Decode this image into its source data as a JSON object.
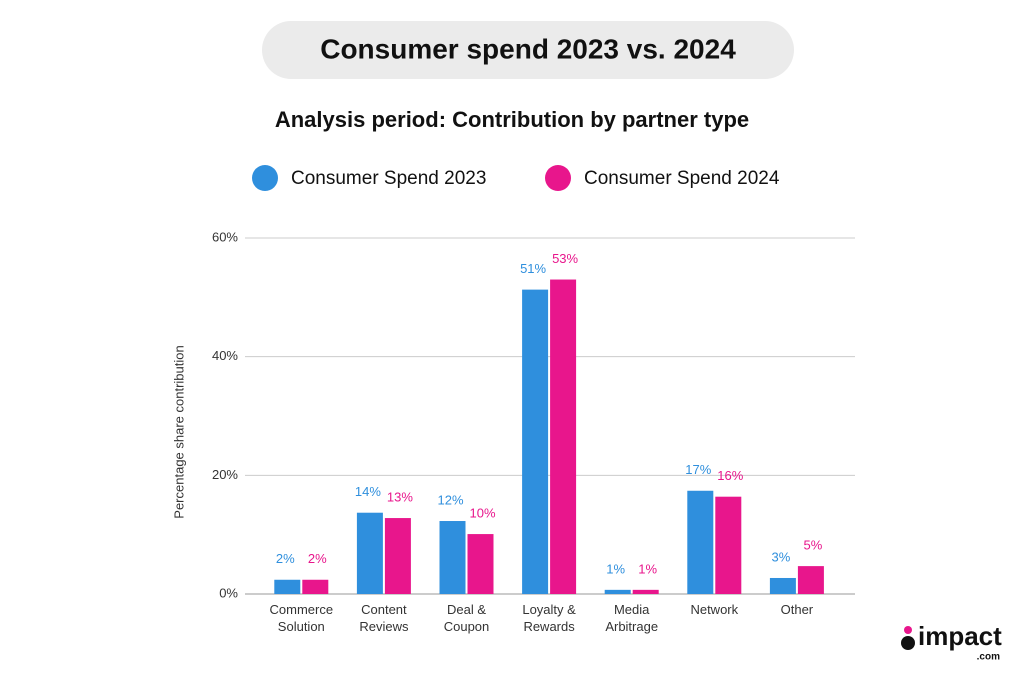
{
  "chart_data": {
    "type": "bar",
    "title": "Consumer spend 2023 vs. 2024",
    "subtitle": "Analysis period: Contribution by partner type",
    "y_label": "Percentage share contribution",
    "categories": [
      "Commerce Solution",
      "Content Reviews",
      "Deal & Coupon",
      "Loyalty & Rewards",
      "Media Arbitrage",
      "Network",
      "Other"
    ],
    "series": [
      {
        "name": "Consumer Spend 2023",
        "color": "#2f8fdd",
        "values": [
          2.4,
          13.7,
          12.3,
          51.3,
          0.7,
          17.4,
          2.7
        ],
        "value_labels": [
          "2%",
          "14%",
          "12%",
          "51%",
          "1%",
          "17%",
          "3%"
        ]
      },
      {
        "name": "Consumer Spend 2024",
        "color": "#e8168c",
        "values": [
          2.4,
          12.8,
          10.1,
          53.0,
          0.7,
          16.4,
          4.7
        ],
        "value_labels": [
          "2%",
          "13%",
          "10%",
          "53%",
          "1%",
          "16%",
          "5%"
        ]
      }
    ],
    "ylim": [
      0,
      60
    ],
    "yticks": [
      {
        "value": 0,
        "label": "0%"
      },
      {
        "value": 20,
        "label": "20%"
      },
      {
        "value": 40,
        "label": "40%"
      },
      {
        "value": 60,
        "label": "60%"
      }
    ],
    "grid": true
  },
  "logo": {
    "name": "impact",
    "suffix": ".com"
  }
}
